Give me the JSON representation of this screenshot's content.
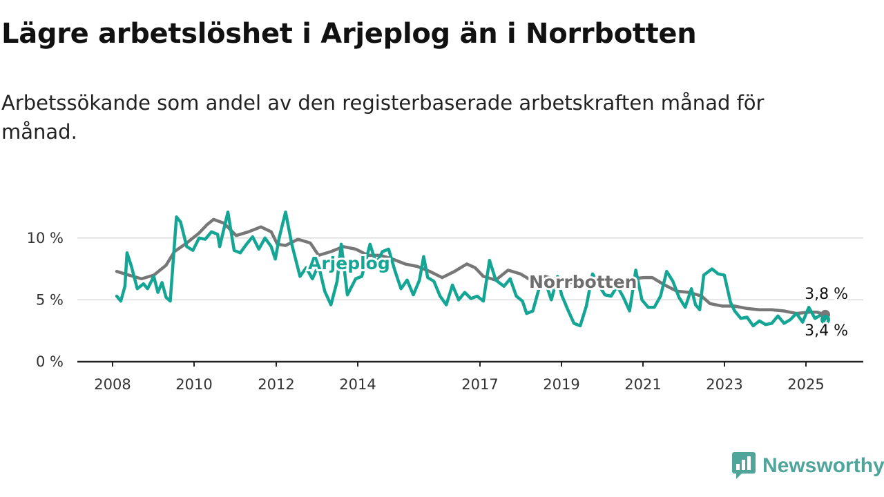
{
  "title": "Lägre arbetslöshet i Arjeplog än i Norrbotten",
  "subtitle": "Arbetssökande som andel av den registerbaserade arbetskraften månad för månad.",
  "brand": {
    "name": "Newsworthy",
    "icon": "newsworthy-logo-icon",
    "color": "#4fa59a"
  },
  "chart_data": {
    "type": "line",
    "ylim": [
      0,
      12.5
    ],
    "xlim": [
      2007.9,
      2025.2
    ],
    "grid": true,
    "x_ticks": [
      2008,
      2010,
      2012,
      2014,
      2017,
      2019,
      2021,
      2023,
      2025
    ],
    "x_tick_labels": [
      "2008",
      "2010",
      "2012",
      "2014",
      "2017",
      "2019",
      "2021",
      "2023",
      "2025"
    ],
    "y_ticks": [
      0,
      5,
      10
    ],
    "y_tick_labels": [
      "0 %",
      "5 %",
      "10 %"
    ],
    "series": [
      {
        "name": "Norrbotten",
        "color": "#777777",
        "end_label": "3,8 %",
        "points": [
          [
            2008.0,
            7.3
          ],
          [
            2008.3,
            7.0
          ],
          [
            2008.6,
            6.7
          ],
          [
            2008.9,
            7.0
          ],
          [
            2009.2,
            7.8
          ],
          [
            2009.4,
            8.9
          ],
          [
            2009.7,
            9.6
          ],
          [
            2010.0,
            10.4
          ],
          [
            2010.2,
            11.1
          ],
          [
            2010.35,
            11.5
          ],
          [
            2010.6,
            11.2
          ],
          [
            2010.9,
            10.2
          ],
          [
            2011.2,
            10.5
          ],
          [
            2011.5,
            10.9
          ],
          [
            2011.75,
            10.5
          ],
          [
            2011.9,
            9.5
          ],
          [
            2012.1,
            9.4
          ],
          [
            2012.4,
            9.9
          ],
          [
            2012.7,
            9.6
          ],
          [
            2012.9,
            8.6
          ],
          [
            2013.2,
            8.9
          ],
          [
            2013.5,
            9.3
          ],
          [
            2013.8,
            9.1
          ],
          [
            2014.1,
            8.6
          ],
          [
            2014.4,
            8.6
          ],
          [
            2014.7,
            8.3
          ],
          [
            2015.0,
            7.9
          ],
          [
            2015.3,
            7.7
          ],
          [
            2015.6,
            7.3
          ],
          [
            2015.9,
            6.8
          ],
          [
            2016.2,
            7.3
          ],
          [
            2016.5,
            7.9
          ],
          [
            2016.7,
            7.6
          ],
          [
            2016.9,
            6.9
          ],
          [
            2017.2,
            6.6
          ],
          [
            2017.5,
            7.4
          ],
          [
            2017.8,
            7.1
          ],
          [
            2018.1,
            6.5
          ],
          [
            2018.4,
            6.9
          ],
          [
            2018.7,
            6.6
          ],
          [
            2019.0,
            6.4
          ],
          [
            2019.3,
            6.6
          ],
          [
            2019.6,
            6.2
          ],
          [
            2019.9,
            6.0
          ],
          [
            2020.2,
            6.3
          ],
          [
            2020.5,
            6.7
          ],
          [
            2020.8,
            6.8
          ],
          [
            2021.0,
            6.8
          ],
          [
            2021.3,
            6.2
          ],
          [
            2021.6,
            5.7
          ],
          [
            2021.9,
            5.6
          ],
          [
            2022.2,
            5.3
          ],
          [
            2022.4,
            4.7
          ],
          [
            2022.7,
            4.5
          ],
          [
            2023.0,
            4.5
          ],
          [
            2023.3,
            4.3
          ],
          [
            2023.6,
            4.2
          ],
          [
            2023.9,
            4.2
          ],
          [
            2024.2,
            4.1
          ],
          [
            2024.5,
            3.9
          ],
          [
            2024.8,
            4.0
          ],
          [
            2025.0,
            4.0
          ],
          [
            2025.2,
            3.8
          ]
        ]
      },
      {
        "name": "Arjeplog",
        "color": "#14a595",
        "end_label": "3,4 %",
        "points": [
          [
            2008.0,
            5.3
          ],
          [
            2008.1,
            4.9
          ],
          [
            2008.2,
            6.1
          ],
          [
            2008.25,
            8.8
          ],
          [
            2008.35,
            7.8
          ],
          [
            2008.5,
            5.9
          ],
          [
            2008.65,
            6.3
          ],
          [
            2008.75,
            5.9
          ],
          [
            2008.9,
            6.9
          ],
          [
            2009.0,
            5.6
          ],
          [
            2009.1,
            6.4
          ],
          [
            2009.2,
            5.2
          ],
          [
            2009.3,
            4.9
          ],
          [
            2009.45,
            11.7
          ],
          [
            2009.55,
            11.3
          ],
          [
            2009.7,
            9.3
          ],
          [
            2009.85,
            9.0
          ],
          [
            2010.0,
            10.0
          ],
          [
            2010.15,
            9.9
          ],
          [
            2010.3,
            10.5
          ],
          [
            2010.45,
            10.3
          ],
          [
            2010.5,
            9.3
          ],
          [
            2010.7,
            12.1
          ],
          [
            2010.85,
            9.0
          ],
          [
            2011.0,
            8.8
          ],
          [
            2011.15,
            9.5
          ],
          [
            2011.3,
            10.1
          ],
          [
            2011.45,
            9.1
          ],
          [
            2011.6,
            10.0
          ],
          [
            2011.75,
            9.3
          ],
          [
            2011.85,
            8.3
          ],
          [
            2011.95,
            10.1
          ],
          [
            2012.1,
            12.1
          ],
          [
            2012.25,
            9.5
          ],
          [
            2012.45,
            6.9
          ],
          [
            2012.6,
            7.6
          ],
          [
            2012.75,
            6.7
          ],
          [
            2012.9,
            7.8
          ],
          [
            2013.05,
            5.7
          ],
          [
            2013.2,
            4.6
          ],
          [
            2013.35,
            6.5
          ],
          [
            2013.45,
            9.5
          ],
          [
            2013.6,
            5.4
          ],
          [
            2013.8,
            6.7
          ],
          [
            2013.95,
            6.9
          ],
          [
            2014.15,
            9.5
          ],
          [
            2014.3,
            7.9
          ],
          [
            2014.45,
            8.9
          ],
          [
            2014.6,
            9.1
          ],
          [
            2014.75,
            7.4
          ],
          [
            2014.9,
            5.9
          ],
          [
            2015.05,
            6.6
          ],
          [
            2015.2,
            5.4
          ],
          [
            2015.35,
            6.6
          ],
          [
            2015.45,
            8.5
          ],
          [
            2015.55,
            6.8
          ],
          [
            2015.7,
            6.5
          ],
          [
            2015.85,
            5.3
          ],
          [
            2016.0,
            4.6
          ],
          [
            2016.15,
            6.2
          ],
          [
            2016.3,
            5.0
          ],
          [
            2016.45,
            5.6
          ],
          [
            2016.6,
            5.1
          ],
          [
            2016.75,
            5.3
          ],
          [
            2016.9,
            4.9
          ],
          [
            2017.05,
            8.2
          ],
          [
            2017.2,
            6.6
          ],
          [
            2017.4,
            6.1
          ],
          [
            2017.55,
            6.7
          ],
          [
            2017.7,
            5.3
          ],
          [
            2017.85,
            4.9
          ],
          [
            2017.95,
            3.9
          ],
          [
            2018.1,
            4.1
          ],
          [
            2018.25,
            5.9
          ],
          [
            2018.4,
            6.5
          ],
          [
            2018.55,
            5.0
          ],
          [
            2018.7,
            6.9
          ],
          [
            2018.8,
            5.4
          ],
          [
            2018.95,
            4.2
          ],
          [
            2019.1,
            3.1
          ],
          [
            2019.25,
            2.9
          ],
          [
            2019.4,
            4.5
          ],
          [
            2019.55,
            7.1
          ],
          [
            2019.7,
            6.2
          ],
          [
            2019.85,
            5.4
          ],
          [
            2020.0,
            5.3
          ],
          [
            2020.15,
            6.1
          ],
          [
            2020.3,
            5.2
          ],
          [
            2020.45,
            4.1
          ],
          [
            2020.6,
            7.4
          ],
          [
            2020.75,
            5.0
          ],
          [
            2020.9,
            4.4
          ],
          [
            2021.05,
            4.4
          ],
          [
            2021.2,
            5.3
          ],
          [
            2021.35,
            7.3
          ],
          [
            2021.5,
            6.5
          ],
          [
            2021.65,
            5.2
          ],
          [
            2021.8,
            4.4
          ],
          [
            2021.95,
            5.9
          ],
          [
            2022.05,
            4.6
          ],
          [
            2022.15,
            4.2
          ],
          [
            2022.25,
            7.0
          ],
          [
            2022.45,
            7.5
          ],
          [
            2022.6,
            7.1
          ],
          [
            2022.75,
            7.0
          ],
          [
            2022.9,
            4.8
          ],
          [
            2023.0,
            4.1
          ],
          [
            2023.15,
            3.5
          ],
          [
            2023.3,
            3.6
          ],
          [
            2023.45,
            2.9
          ],
          [
            2023.6,
            3.3
          ],
          [
            2023.75,
            3.0
          ],
          [
            2023.9,
            3.1
          ],
          [
            2024.05,
            3.7
          ],
          [
            2024.2,
            3.1
          ],
          [
            2024.35,
            3.4
          ],
          [
            2024.5,
            3.9
          ],
          [
            2024.65,
            3.2
          ],
          [
            2024.8,
            4.4
          ],
          [
            2024.95,
            3.5
          ],
          [
            2025.1,
            3.8
          ],
          [
            2025.2,
            3.4
          ]
        ]
      }
    ]
  }
}
